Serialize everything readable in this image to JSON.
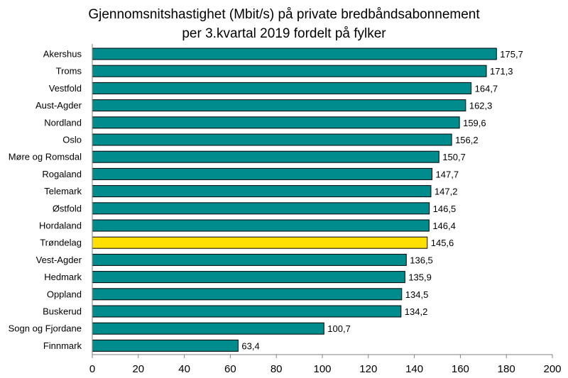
{
  "chart_data": {
    "type": "bar",
    "orientation": "horizontal",
    "title": "Gjennomsnitshastighet (Mbit/s) på private bredbåndsabonnement",
    "subtitle": "per 3.kvartal 2019 fordelt på fylker",
    "categories": [
      "Akershus",
      "Troms",
      "Vestfold",
      "Aust-Agder",
      "Nordland",
      "Oslo",
      "Møre og Romsdal",
      "Rogaland",
      "Telemark",
      "Østfold",
      "Hordaland",
      "Trøndelag",
      "Vest-Agder",
      "Hedmark",
      "Oppland",
      "Buskerud",
      "Sogn og Fjordane",
      "Finnmark"
    ],
    "values": [
      175.7,
      171.3,
      164.7,
      162.3,
      159.6,
      156.2,
      150.7,
      147.7,
      147.2,
      146.5,
      146.4,
      145.6,
      136.5,
      135.9,
      134.5,
      134.2,
      100.7,
      63.4
    ],
    "value_labels": [
      "175,7",
      "171,3",
      "164,7",
      "162,3",
      "159,6",
      "156,2",
      "150,7",
      "147,7",
      "147,2",
      "146,5",
      "146,4",
      "145,6",
      "136,5",
      "135,9",
      "134,5",
      "134,2",
      "100,7",
      "63,4"
    ],
    "highlight_category": "Trøndelag",
    "xlim": [
      0,
      200
    ],
    "xticks": [
      0,
      20,
      40,
      60,
      80,
      100,
      120,
      140,
      160,
      180,
      200
    ],
    "xlabel": "",
    "ylabel": "",
    "grid": false,
    "legend": "none",
    "colors": {
      "bar": "#008C8C",
      "highlight": "#FFE000",
      "bar_stroke": "#000000",
      "axis": "#7F7F7F",
      "text": "#000000"
    }
  }
}
